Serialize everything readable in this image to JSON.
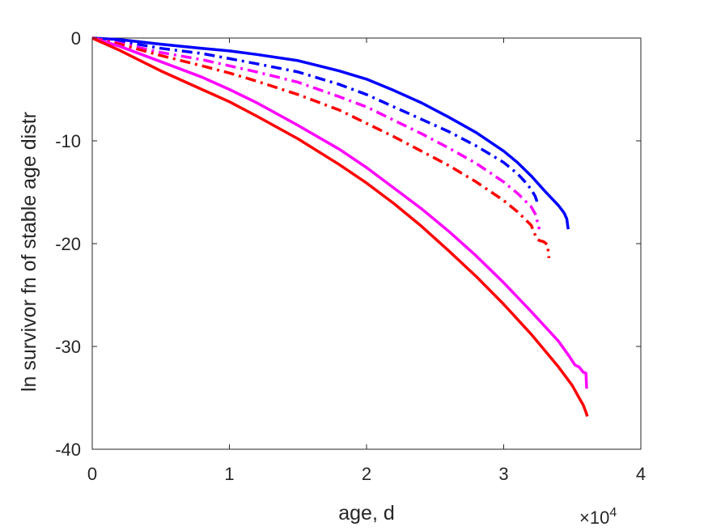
{
  "chart_data": {
    "type": "line",
    "xlabel": "age, d",
    "ylabel": "ln survivor fn of stable age distr",
    "x_exponent_label": "×10",
    "x_exponent_power": "4",
    "x_scale": 10000,
    "xlim": [
      0,
      40000
    ],
    "ylim": [
      -40,
      0
    ],
    "x_ticks": [
      0,
      10000,
      20000,
      30000,
      40000
    ],
    "x_tick_labels": [
      "0",
      "1",
      "2",
      "3",
      "4"
    ],
    "y_ticks": [
      0,
      -10,
      -20,
      -30,
      -40
    ],
    "y_tick_labels": [
      "0",
      "-10",
      "-20",
      "-30",
      "-40"
    ],
    "grid": false,
    "series": [
      {
        "color": "#0000ff",
        "style": "solid",
        "points": [
          [
            0,
            0
          ],
          [
            2000,
            -0.15
          ],
          [
            5000,
            -0.6
          ],
          [
            8000,
            -1.0
          ],
          [
            10000,
            -1.25
          ],
          [
            12000,
            -1.6
          ],
          [
            15000,
            -2.2
          ],
          [
            18000,
            -3.2
          ],
          [
            20000,
            -4.0
          ],
          [
            22000,
            -5.1
          ],
          [
            24000,
            -6.3
          ],
          [
            26000,
            -7.7
          ],
          [
            28000,
            -9.2
          ],
          [
            30000,
            -11.0
          ],
          [
            31000,
            -12.1
          ],
          [
            32000,
            -13.4
          ],
          [
            33000,
            -14.9
          ],
          [
            34000,
            -16.3
          ],
          [
            34400,
            -17.0
          ],
          [
            34600,
            -17.6
          ],
          [
            34700,
            -18.6
          ]
        ]
      },
      {
        "color": "#0000ff",
        "style": "dashdot",
        "points": [
          [
            0,
            0
          ],
          [
            2000,
            -0.3
          ],
          [
            5000,
            -1.0
          ],
          [
            8000,
            -1.5
          ],
          [
            10000,
            -2.0
          ],
          [
            12000,
            -2.5
          ],
          [
            15000,
            -3.3
          ],
          [
            18000,
            -4.5
          ],
          [
            20000,
            -5.5
          ],
          [
            22000,
            -6.7
          ],
          [
            24000,
            -7.9
          ],
          [
            26000,
            -9.1
          ],
          [
            28000,
            -10.5
          ],
          [
            30000,
            -12.1
          ],
          [
            31000,
            -13.2
          ],
          [
            31500,
            -13.9
          ],
          [
            32000,
            -14.7
          ],
          [
            32300,
            -15.4
          ],
          [
            32500,
            -16.2
          ]
        ]
      },
      {
        "color": "#ff00ff",
        "style": "dashdot",
        "points": [
          [
            0,
            0
          ],
          [
            2000,
            -0.5
          ],
          [
            5000,
            -1.4
          ],
          [
            8000,
            -2.1
          ],
          [
            10000,
            -2.7
          ],
          [
            12000,
            -3.3
          ],
          [
            15000,
            -4.3
          ],
          [
            18000,
            -5.7
          ],
          [
            20000,
            -6.7
          ],
          [
            22000,
            -8.0
          ],
          [
            24000,
            -9.3
          ],
          [
            26000,
            -10.7
          ],
          [
            28000,
            -12.2
          ],
          [
            30000,
            -14.0
          ],
          [
            31000,
            -15.1
          ],
          [
            32000,
            -16.4
          ],
          [
            32300,
            -17.1
          ],
          [
            32400,
            -17.6
          ],
          [
            32600,
            -18.6
          ]
        ]
      },
      {
        "color": "#ff0000",
        "style": "dashdot",
        "points": [
          [
            0,
            0
          ],
          [
            2000,
            -0.6
          ],
          [
            5000,
            -1.7
          ],
          [
            8000,
            -2.7
          ],
          [
            10000,
            -3.4
          ],
          [
            12000,
            -4.2
          ],
          [
            15000,
            -5.5
          ],
          [
            18000,
            -7.0
          ],
          [
            20000,
            -8.3
          ],
          [
            22000,
            -9.6
          ],
          [
            24000,
            -11.0
          ],
          [
            26000,
            -12.4
          ],
          [
            28000,
            -14.0
          ],
          [
            30000,
            -15.8
          ],
          [
            31000,
            -16.9
          ],
          [
            32000,
            -18.2
          ],
          [
            32400,
            -19.5
          ],
          [
            32600,
            -19.7
          ],
          [
            32900,
            -19.8
          ],
          [
            33200,
            -20.1
          ],
          [
            33300,
            -21.4
          ]
        ]
      },
      {
        "color": "#ff00ff",
        "style": "solid",
        "points": [
          [
            0,
            0
          ],
          [
            2000,
            -0.8
          ],
          [
            5000,
            -2.3
          ],
          [
            8000,
            -3.8
          ],
          [
            10000,
            -5.0
          ],
          [
            12000,
            -6.3
          ],
          [
            15000,
            -8.5
          ],
          [
            18000,
            -10.8
          ],
          [
            20000,
            -12.6
          ],
          [
            22000,
            -14.6
          ],
          [
            24000,
            -16.6
          ],
          [
            26000,
            -18.8
          ],
          [
            28000,
            -21.2
          ],
          [
            30000,
            -23.8
          ],
          [
            32000,
            -26.6
          ],
          [
            34000,
            -29.5
          ],
          [
            34800,
            -31.0
          ],
          [
            35200,
            -31.8
          ],
          [
            35500,
            -32.0
          ],
          [
            35800,
            -32.5
          ],
          [
            36000,
            -32.6
          ],
          [
            36050,
            -34.1
          ]
        ]
      },
      {
        "color": "#ff0000",
        "style": "solid",
        "points": [
          [
            0,
            0
          ],
          [
            2000,
            -1.2
          ],
          [
            5000,
            -3.2
          ],
          [
            8000,
            -5.0
          ],
          [
            10000,
            -6.2
          ],
          [
            12000,
            -7.6
          ],
          [
            15000,
            -9.8
          ],
          [
            18000,
            -12.3
          ],
          [
            20000,
            -14.1
          ],
          [
            22000,
            -16.1
          ],
          [
            24000,
            -18.3
          ],
          [
            26000,
            -20.7
          ],
          [
            28000,
            -23.2
          ],
          [
            30000,
            -25.9
          ],
          [
            32000,
            -28.8
          ],
          [
            34000,
            -32.0
          ],
          [
            35000,
            -33.8
          ],
          [
            35500,
            -35.0
          ],
          [
            35800,
            -35.7
          ],
          [
            36000,
            -36.4
          ],
          [
            36100,
            -36.8
          ]
        ]
      }
    ]
  }
}
